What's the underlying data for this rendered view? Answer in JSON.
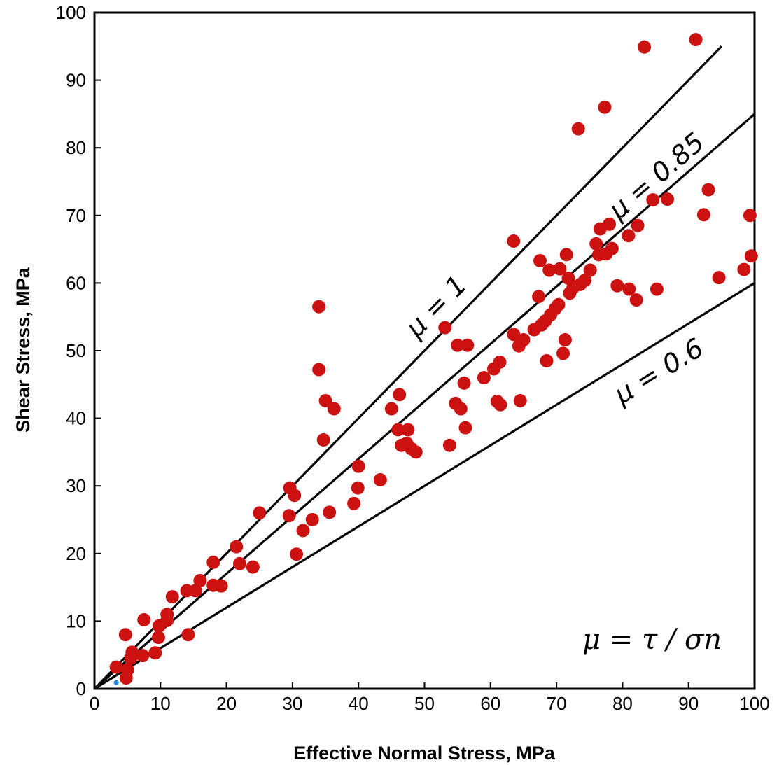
{
  "chart_data": {
    "type": "scatter",
    "xlabel": "Effective Normal Stress, MPa",
    "ylabel": "Shear Stress, MPa",
    "xlim": [
      0,
      100
    ],
    "ylim": [
      0,
      100
    ],
    "x_ticks": [
      "0",
      "10",
      "20",
      "30",
      "40",
      "50",
      "60",
      "70",
      "80",
      "90",
      "100"
    ],
    "y_ticks": [
      "0",
      "10",
      "20",
      "30",
      "40",
      "50",
      "60",
      "70",
      "80",
      "90",
      "100"
    ],
    "grid": false,
    "point_color": "#cc1111",
    "formula": "μ = τ / σn",
    "reference_lines": [
      {
        "label": "μ = 1",
        "slope": 1.0,
        "x_end": 95.0
      },
      {
        "label": "μ = 0.85",
        "slope": 0.85,
        "x_end": 100
      },
      {
        "label": "μ = 0.6",
        "slope": 0.6,
        "x_end": 100
      }
    ],
    "points": [
      [
        3.3,
        3.2
      ],
      [
        4.7,
        8.0
      ],
      [
        5.0,
        2.8
      ],
      [
        4.8,
        1.6
      ],
      [
        5.7,
        5.4
      ],
      [
        5.5,
        4.5
      ],
      [
        7.3,
        4.9
      ],
      [
        7.5,
        10.2
      ],
      [
        9.2,
        5.3
      ],
      [
        9.7,
        7.6
      ],
      [
        9.8,
        9.3
      ],
      [
        11.0,
        10.1
      ],
      [
        11.0,
        11.0
      ],
      [
        11.8,
        13.6
      ],
      [
        14.0,
        14.5
      ],
      [
        14.2,
        8.0
      ],
      [
        15.3,
        14.5
      ],
      [
        16.0,
        16.0
      ],
      [
        18.0,
        18.7
      ],
      [
        18.0,
        15.3
      ],
      [
        19.2,
        15.2
      ],
      [
        21.5,
        21.0
      ],
      [
        22.0,
        18.5
      ],
      [
        24.0,
        18.0
      ],
      [
        25.0,
        26.0
      ],
      [
        29.5,
        25.6
      ],
      [
        29.6,
        29.7
      ],
      [
        30.3,
        28.6
      ],
      [
        30.6,
        19.9
      ],
      [
        31.6,
        23.4
      ],
      [
        33.0,
        25.0
      ],
      [
        34.0,
        56.5
      ],
      [
        34.0,
        47.2
      ],
      [
        34.7,
        36.8
      ],
      [
        35.0,
        42.6
      ],
      [
        35.6,
        26.1
      ],
      [
        36.3,
        41.4
      ],
      [
        39.3,
        27.4
      ],
      [
        39.9,
        29.7
      ],
      [
        40.0,
        32.9
      ],
      [
        43.3,
        30.9
      ],
      [
        45.0,
        41.4
      ],
      [
        46.0,
        38.3
      ],
      [
        46.2,
        43.5
      ],
      [
        46.5,
        36.0
      ],
      [
        47.3,
        36.3
      ],
      [
        47.5,
        38.3
      ],
      [
        48.0,
        35.5
      ],
      [
        48.7,
        35.0
      ],
      [
        53.1,
        53.4
      ],
      [
        53.8,
        36.0
      ],
      [
        54.7,
        42.2
      ],
      [
        55.0,
        50.8
      ],
      [
        55.5,
        41.4
      ],
      [
        56.0,
        45.2
      ],
      [
        56.2,
        38.6
      ],
      [
        56.5,
        50.8
      ],
      [
        59.0,
        46.0
      ],
      [
        60.5,
        47.3
      ],
      [
        61.0,
        42.5
      ],
      [
        61.4,
        48.3
      ],
      [
        61.5,
        42.0
      ],
      [
        63.5,
        66.2
      ],
      [
        63.5,
        52.4
      ],
      [
        64.3,
        50.7
      ],
      [
        64.5,
        42.6
      ],
      [
        65.0,
        51.6
      ],
      [
        66.6,
        53.1
      ],
      [
        67.3,
        58.0
      ],
      [
        67.5,
        63.3
      ],
      [
        67.7,
        53.8
      ],
      [
        68.3,
        54.4
      ],
      [
        68.5,
        48.5
      ],
      [
        68.9,
        61.9
      ],
      [
        69.1,
        55.3
      ],
      [
        69.8,
        56.2
      ],
      [
        70.3,
        56.8
      ],
      [
        70.5,
        62.1
      ],
      [
        71.0,
        49.6
      ],
      [
        71.3,
        51.6
      ],
      [
        71.5,
        64.2
      ],
      [
        71.8,
        60.7
      ],
      [
        72.0,
        58.5
      ],
      [
        72.5,
        59.3
      ],
      [
        73.3,
        82.8
      ],
      [
        73.6,
        59.8
      ],
      [
        74.3,
        60.4
      ],
      [
        75.1,
        61.9
      ],
      [
        76.0,
        65.8
      ],
      [
        76.4,
        64.2
      ],
      [
        76.6,
        68.0
      ],
      [
        77.3,
        86.0
      ],
      [
        77.5,
        64.3
      ],
      [
        78.0,
        68.7
      ],
      [
        78.4,
        65.1
      ],
      [
        79.2,
        59.6
      ],
      [
        80.9,
        67.0
      ],
      [
        81.0,
        59.1
      ],
      [
        82.1,
        57.5
      ],
      [
        82.3,
        68.5
      ],
      [
        83.3,
        94.9
      ],
      [
        84.6,
        72.3
      ],
      [
        85.2,
        59.1
      ],
      [
        86.8,
        72.4
      ],
      [
        91.1,
        96.0
      ],
      [
        92.3,
        70.1
      ],
      [
        93.0,
        73.8
      ],
      [
        94.6,
        60.8
      ],
      [
        98.4,
        62.0
      ],
      [
        99.3,
        70.0
      ],
      [
        99.5,
        64.0
      ]
    ],
    "special_points": [
      [
        3.3,
        0.9
      ]
    ]
  }
}
